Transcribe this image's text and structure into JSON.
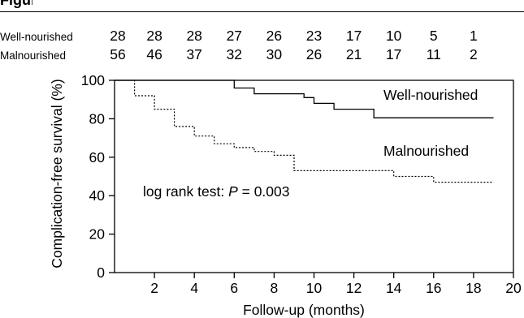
{
  "figure": {
    "label": "Figure"
  },
  "chart_data": {
    "type": "line",
    "title": "",
    "xlabel": "Follow-up (months)",
    "ylabel": "Complication-free survival (%)",
    "xlim": [
      0,
      20
    ],
    "ylim": [
      0,
      100
    ],
    "xticks": [
      "2",
      "4",
      "6",
      "8",
      "10",
      "12",
      "14",
      "16",
      "18",
      "20"
    ],
    "yticks": [
      "0",
      "20",
      "40",
      "60",
      "80",
      "100"
    ],
    "grid": false,
    "series": [
      {
        "name": "Well-nourished",
        "style": "solid",
        "points": [
          [
            0,
            100
          ],
          [
            6,
            100
          ],
          [
            6,
            96
          ],
          [
            7,
            96
          ],
          [
            7,
            93
          ],
          [
            9.5,
            93
          ],
          [
            9.5,
            91
          ],
          [
            10,
            91
          ],
          [
            10,
            88
          ],
          [
            11,
            88
          ],
          [
            11,
            85
          ],
          [
            13,
            85
          ],
          [
            13,
            80.5
          ],
          [
            19,
            80.5
          ]
        ]
      },
      {
        "name": "Malnourished",
        "style": "dotted",
        "points": [
          [
            0,
            100
          ],
          [
            1,
            100
          ],
          [
            1,
            92
          ],
          [
            2,
            92
          ],
          [
            2,
            85
          ],
          [
            3,
            85
          ],
          [
            3,
            76
          ],
          [
            4,
            76
          ],
          [
            4,
            71
          ],
          [
            5,
            71
          ],
          [
            5,
            67
          ],
          [
            6,
            67
          ],
          [
            6,
            65
          ],
          [
            7,
            65
          ],
          [
            7,
            63
          ],
          [
            8,
            63
          ],
          [
            8,
            61
          ],
          [
            9,
            61
          ],
          [
            9,
            53
          ],
          [
            14,
            53
          ],
          [
            14,
            50
          ],
          [
            16,
            50
          ],
          [
            16,
            47
          ],
          [
            19,
            47
          ]
        ]
      }
    ],
    "series_labels": [
      "Well-nourished",
      "Malnourished"
    ],
    "annotation": {
      "prefix": "log rank test: ",
      "stat": "P",
      "suffix": " = 0.003"
    },
    "risk_table": {
      "rows": [
        {
          "label": "Well-nourished",
          "values": [
            "28",
            "28",
            "28",
            "27",
            "26",
            "23",
            "17",
            "10",
            "5",
            "1"
          ]
        },
        {
          "label": "Malnourished",
          "values": [
            "56",
            "46",
            "37",
            "32",
            "30",
            "26",
            "21",
            "17",
            "11",
            "2"
          ]
        }
      ],
      "times": [
        0,
        2,
        4,
        6,
        8,
        10,
        12,
        14,
        16,
        18
      ]
    }
  }
}
